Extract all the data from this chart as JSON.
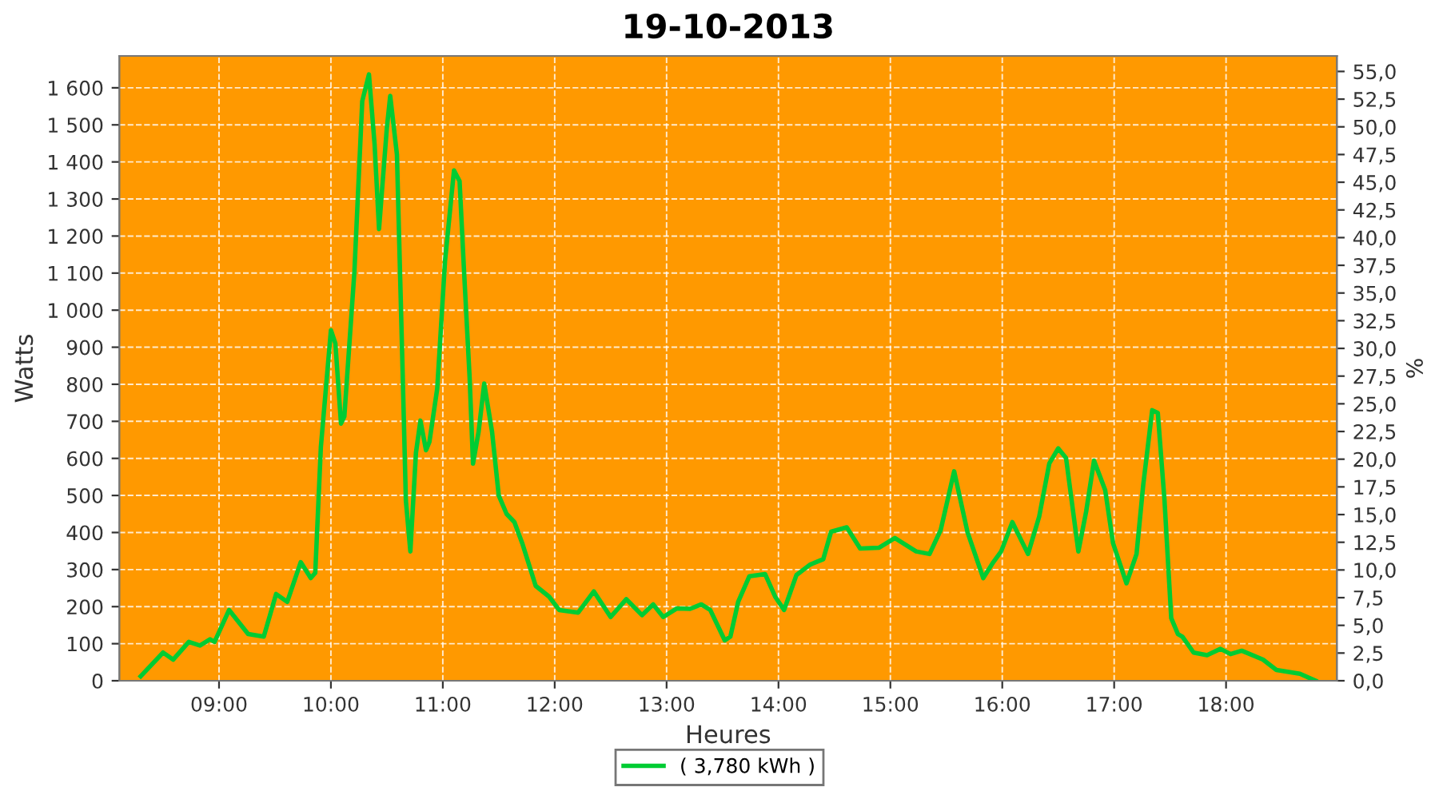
{
  "chart_data": {
    "type": "line",
    "title": "19-10-2013",
    "xlabel": "Heures",
    "ylabel": "Watts",
    "y2label": "%",
    "xlim": [
      8.11,
      18.99
    ],
    "ylim": [
      0,
      1686
    ],
    "y2lim": [
      0,
      56.4
    ],
    "xticks": [
      {
        "value": 9,
        "label": "09:00"
      },
      {
        "value": 10,
        "label": "10:00"
      },
      {
        "value": 11,
        "label": "11:00"
      },
      {
        "value": 12,
        "label": "12:00"
      },
      {
        "value": 13,
        "label": "13:00"
      },
      {
        "value": 14,
        "label": "14:00"
      },
      {
        "value": 15,
        "label": "15:00"
      },
      {
        "value": 16,
        "label": "16:00"
      },
      {
        "value": 17,
        "label": "17:00"
      },
      {
        "value": 18,
        "label": "18:00"
      }
    ],
    "yticks": [
      0,
      100,
      200,
      300,
      400,
      500,
      600,
      700,
      800,
      900,
      {
        "value": 1000,
        "label": "1 000"
      },
      {
        "value": 1100,
        "label": "1 100"
      },
      {
        "value": 1200,
        "label": "1 200"
      },
      {
        "value": 1300,
        "label": "1 300"
      },
      {
        "value": 1400,
        "label": "1 400"
      },
      {
        "value": 1500,
        "label": "1 500"
      },
      {
        "value": 1600,
        "label": "1 600"
      }
    ],
    "y2ticks": [
      {
        "value": 0,
        "label": "0,0"
      },
      {
        "value": 2.5,
        "label": "2,5"
      },
      {
        "value": 5,
        "label": "5,0"
      },
      {
        "value": 7.5,
        "label": "7,5"
      },
      {
        "value": 10,
        "label": "10,0"
      },
      {
        "value": 12.5,
        "label": "12,5"
      },
      {
        "value": 15,
        "label": "15,0"
      },
      {
        "value": 17.5,
        "label": "17,5"
      },
      {
        "value": 20,
        "label": "20,0"
      },
      {
        "value": 22.5,
        "label": "22,5"
      },
      {
        "value": 25,
        "label": "25,0"
      },
      {
        "value": 27.5,
        "label": "27,5"
      },
      {
        "value": 30,
        "label": "30,0"
      },
      {
        "value": 32.5,
        "label": "32,5"
      },
      {
        "value": 35,
        "label": "35,0"
      },
      {
        "value": 37.5,
        "label": "37,5"
      },
      {
        "value": 40,
        "label": "40,0"
      },
      {
        "value": 42.5,
        "label": "42,5"
      },
      {
        "value": 45,
        "label": "45,0"
      },
      {
        "value": 47.5,
        "label": "47,5"
      },
      {
        "value": 50,
        "label": "50,0"
      },
      {
        "value": 52.5,
        "label": "52,5"
      },
      {
        "value": 55,
        "label": "55,0"
      }
    ],
    "grid": true,
    "legend": "bottom",
    "marker": "none",
    "line_style": "solid",
    "series": [
      {
        "name": "( 3,780 kWh )",
        "color": "#00cc33",
        "x": [
          8.3,
          8.5,
          8.59,
          8.73,
          8.83,
          8.92,
          8.96,
          9.09,
          9.26,
          9.4,
          9.51,
          9.61,
          9.73,
          9.82,
          9.86,
          9.91,
          10.0,
          10.04,
          10.09,
          10.12,
          10.21,
          10.28,
          10.34,
          10.39,
          10.43,
          10.5,
          10.53,
          10.59,
          10.64,
          10.67,
          10.71,
          10.76,
          10.8,
          10.85,
          10.88,
          10.95,
          11.02,
          11.1,
          11.15,
          11.19,
          11.24,
          11.27,
          11.32,
          11.37,
          11.44,
          11.5,
          11.57,
          11.64,
          11.71,
          11.83,
          11.95,
          12.04,
          12.21,
          12.35,
          12.5,
          12.64,
          12.78,
          12.88,
          12.97,
          13.09,
          13.21,
          13.31,
          13.39,
          13.52,
          13.57,
          13.64,
          13.74,
          13.88,
          13.97,
          14.05,
          14.16,
          14.28,
          14.4,
          14.47,
          14.61,
          14.73,
          14.9,
          15.04,
          15.23,
          15.35,
          15.45,
          15.57,
          15.69,
          15.83,
          15.92,
          15.99,
          16.09,
          16.23,
          16.33,
          16.42,
          16.5,
          16.57,
          16.68,
          16.75,
          16.82,
          16.92,
          16.99,
          17.11,
          17.2,
          17.26,
          17.34,
          17.39,
          17.45,
          17.51,
          17.57,
          17.61,
          17.71,
          17.83,
          17.95,
          18.04,
          18.14,
          18.33,
          18.45,
          18.66,
          18.8
        ],
        "values": [
          12,
          76,
          57,
          105,
          95,
          112,
          105,
          191,
          126,
          119,
          234,
          213,
          320,
          277,
          291,
          630,
          946,
          910,
          694,
          713,
          1104,
          1564,
          1636,
          1449,
          1219,
          1492,
          1578,
          1420,
          845,
          486,
          349,
          615,
          702,
          622,
          644,
          788,
          1133,
          1377,
          1348,
          1104,
          816,
          586,
          672,
          802,
          672,
          500,
          450,
          428,
          371,
          256,
          227,
          191,
          184,
          241,
          172,
          220,
          177,
          206,
          172,
          195,
          194,
          206,
          191,
          109,
          119,
          213,
          282,
          288,
          227,
          191,
          285,
          313,
          328,
          402,
          414,
          357,
          359,
          385,
          349,
          342,
          407,
          565,
          400,
          277,
          320,
          349,
          428,
          342,
          443,
          586,
          627,
          601,
          349,
          457,
          594,
          514,
          371,
          263,
          342,
          529,
          730,
          723,
          486,
          169,
          126,
          119,
          76,
          69,
          86,
          72,
          81,
          57,
          29,
          19,
          0
        ]
      }
    ]
  }
}
